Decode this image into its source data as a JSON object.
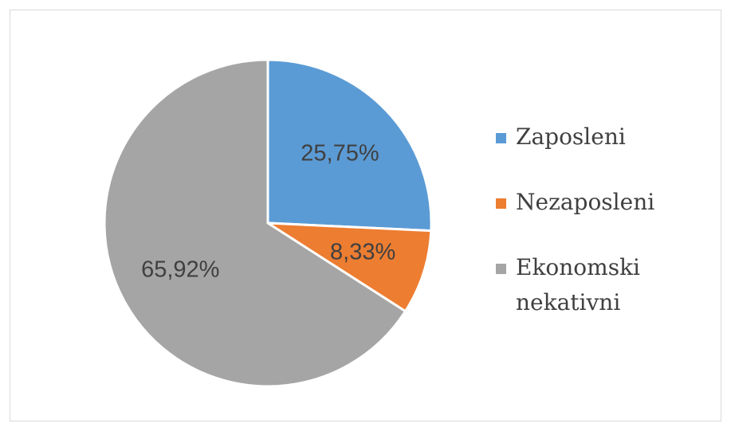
{
  "chart_data": {
    "type": "pie",
    "categories": [
      "Zaposleni",
      "Nezaposleni",
      "Ekonomski nekativni"
    ],
    "values": [
      25.75,
      8.33,
      65.92
    ],
    "value_labels": [
      "25,75%",
      "8,33%",
      "65,92%"
    ],
    "colors": [
      "#5b9bd5",
      "#ed7d31",
      "#a5a5a5"
    ],
    "legend": "right"
  }
}
